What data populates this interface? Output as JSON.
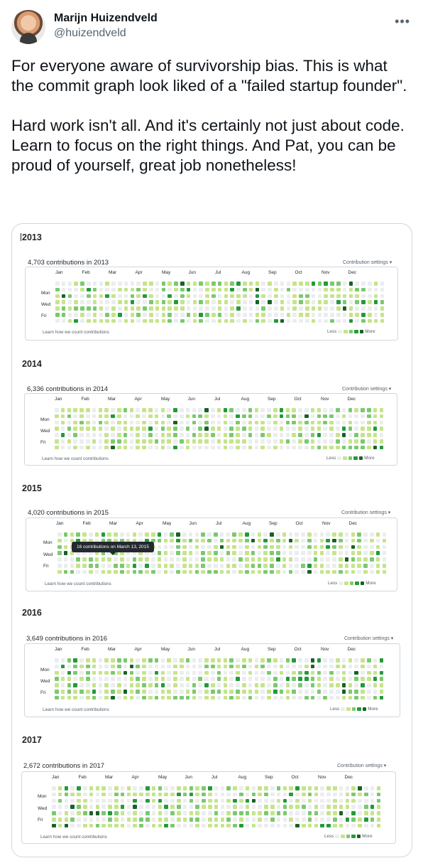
{
  "tweet": {
    "author_name": "Marijn Huizendveld",
    "author_handle": "@huizendveld",
    "more_icon": "more-horizontal-icon",
    "text": "For everyone aware of survivorship bias. This is what the commit graph look liked of a \"failed startup founder\".\n\nHard work isn't all. And it's certainly not just about code. Learn to focus on the right things. And Pat, you can be proud of yourself, great job nonetheless!"
  },
  "graph_ui": {
    "settings_label": "Contribution settings ▾",
    "learn_label": "Learn how we count contributions",
    "less_label": "Less",
    "more_label": "More",
    "day_labels": [
      "Mon",
      "Wed",
      "Fri"
    ],
    "colors": [
      "#ebedf0",
      "#c6e48b",
      "#7bc96f",
      "#239a3b",
      "#196127"
    ]
  },
  "years": [
    {
      "year": "2013",
      "count_label": "4,703 contributions in 2013",
      "months": [
        "Jan",
        "Feb",
        "Mar",
        "Apr",
        "May",
        "Jun",
        "Jul",
        "Aug",
        "Sep",
        "Oct",
        "Nov",
        "Dec"
      ],
      "tooltip": ""
    },
    {
      "year": "2014",
      "count_label": "6,336 contributions in 2014",
      "months": [
        "Jan",
        "Feb",
        "Mar",
        "Apr",
        "May",
        "Jun",
        "Jul",
        "Aug",
        "Sep",
        "Oct",
        "Nov",
        "Dec"
      ],
      "tooltip": ""
    },
    {
      "year": "2015",
      "count_label": "4,020 contributions in 2015",
      "months": [
        "Jan",
        "Feb",
        "Mar",
        "Apr",
        "May",
        "Jun",
        "Jul",
        "Aug",
        "Sep",
        "Oct",
        "Nov",
        "Dec"
      ],
      "tooltip": "16 contributions on March 13, 2015"
    },
    {
      "year": "2016",
      "count_label": "3,649 contributions in 2016",
      "months": [
        "Jan",
        "Feb",
        "Mar",
        "Apr",
        "May",
        "Jun",
        "Jul",
        "Aug",
        "Sep",
        "Oct",
        "Nov",
        "Dec"
      ],
      "tooltip": ""
    },
    {
      "year": "2017",
      "count_label": "2,672 contributions in 2017",
      "months": [
        "Jan",
        "Feb",
        "Mar",
        "Apr",
        "May",
        "Jun",
        "Jul",
        "Aug",
        "Sep",
        "Oct",
        "Nov",
        "Dec"
      ],
      "tooltip": ""
    }
  ]
}
